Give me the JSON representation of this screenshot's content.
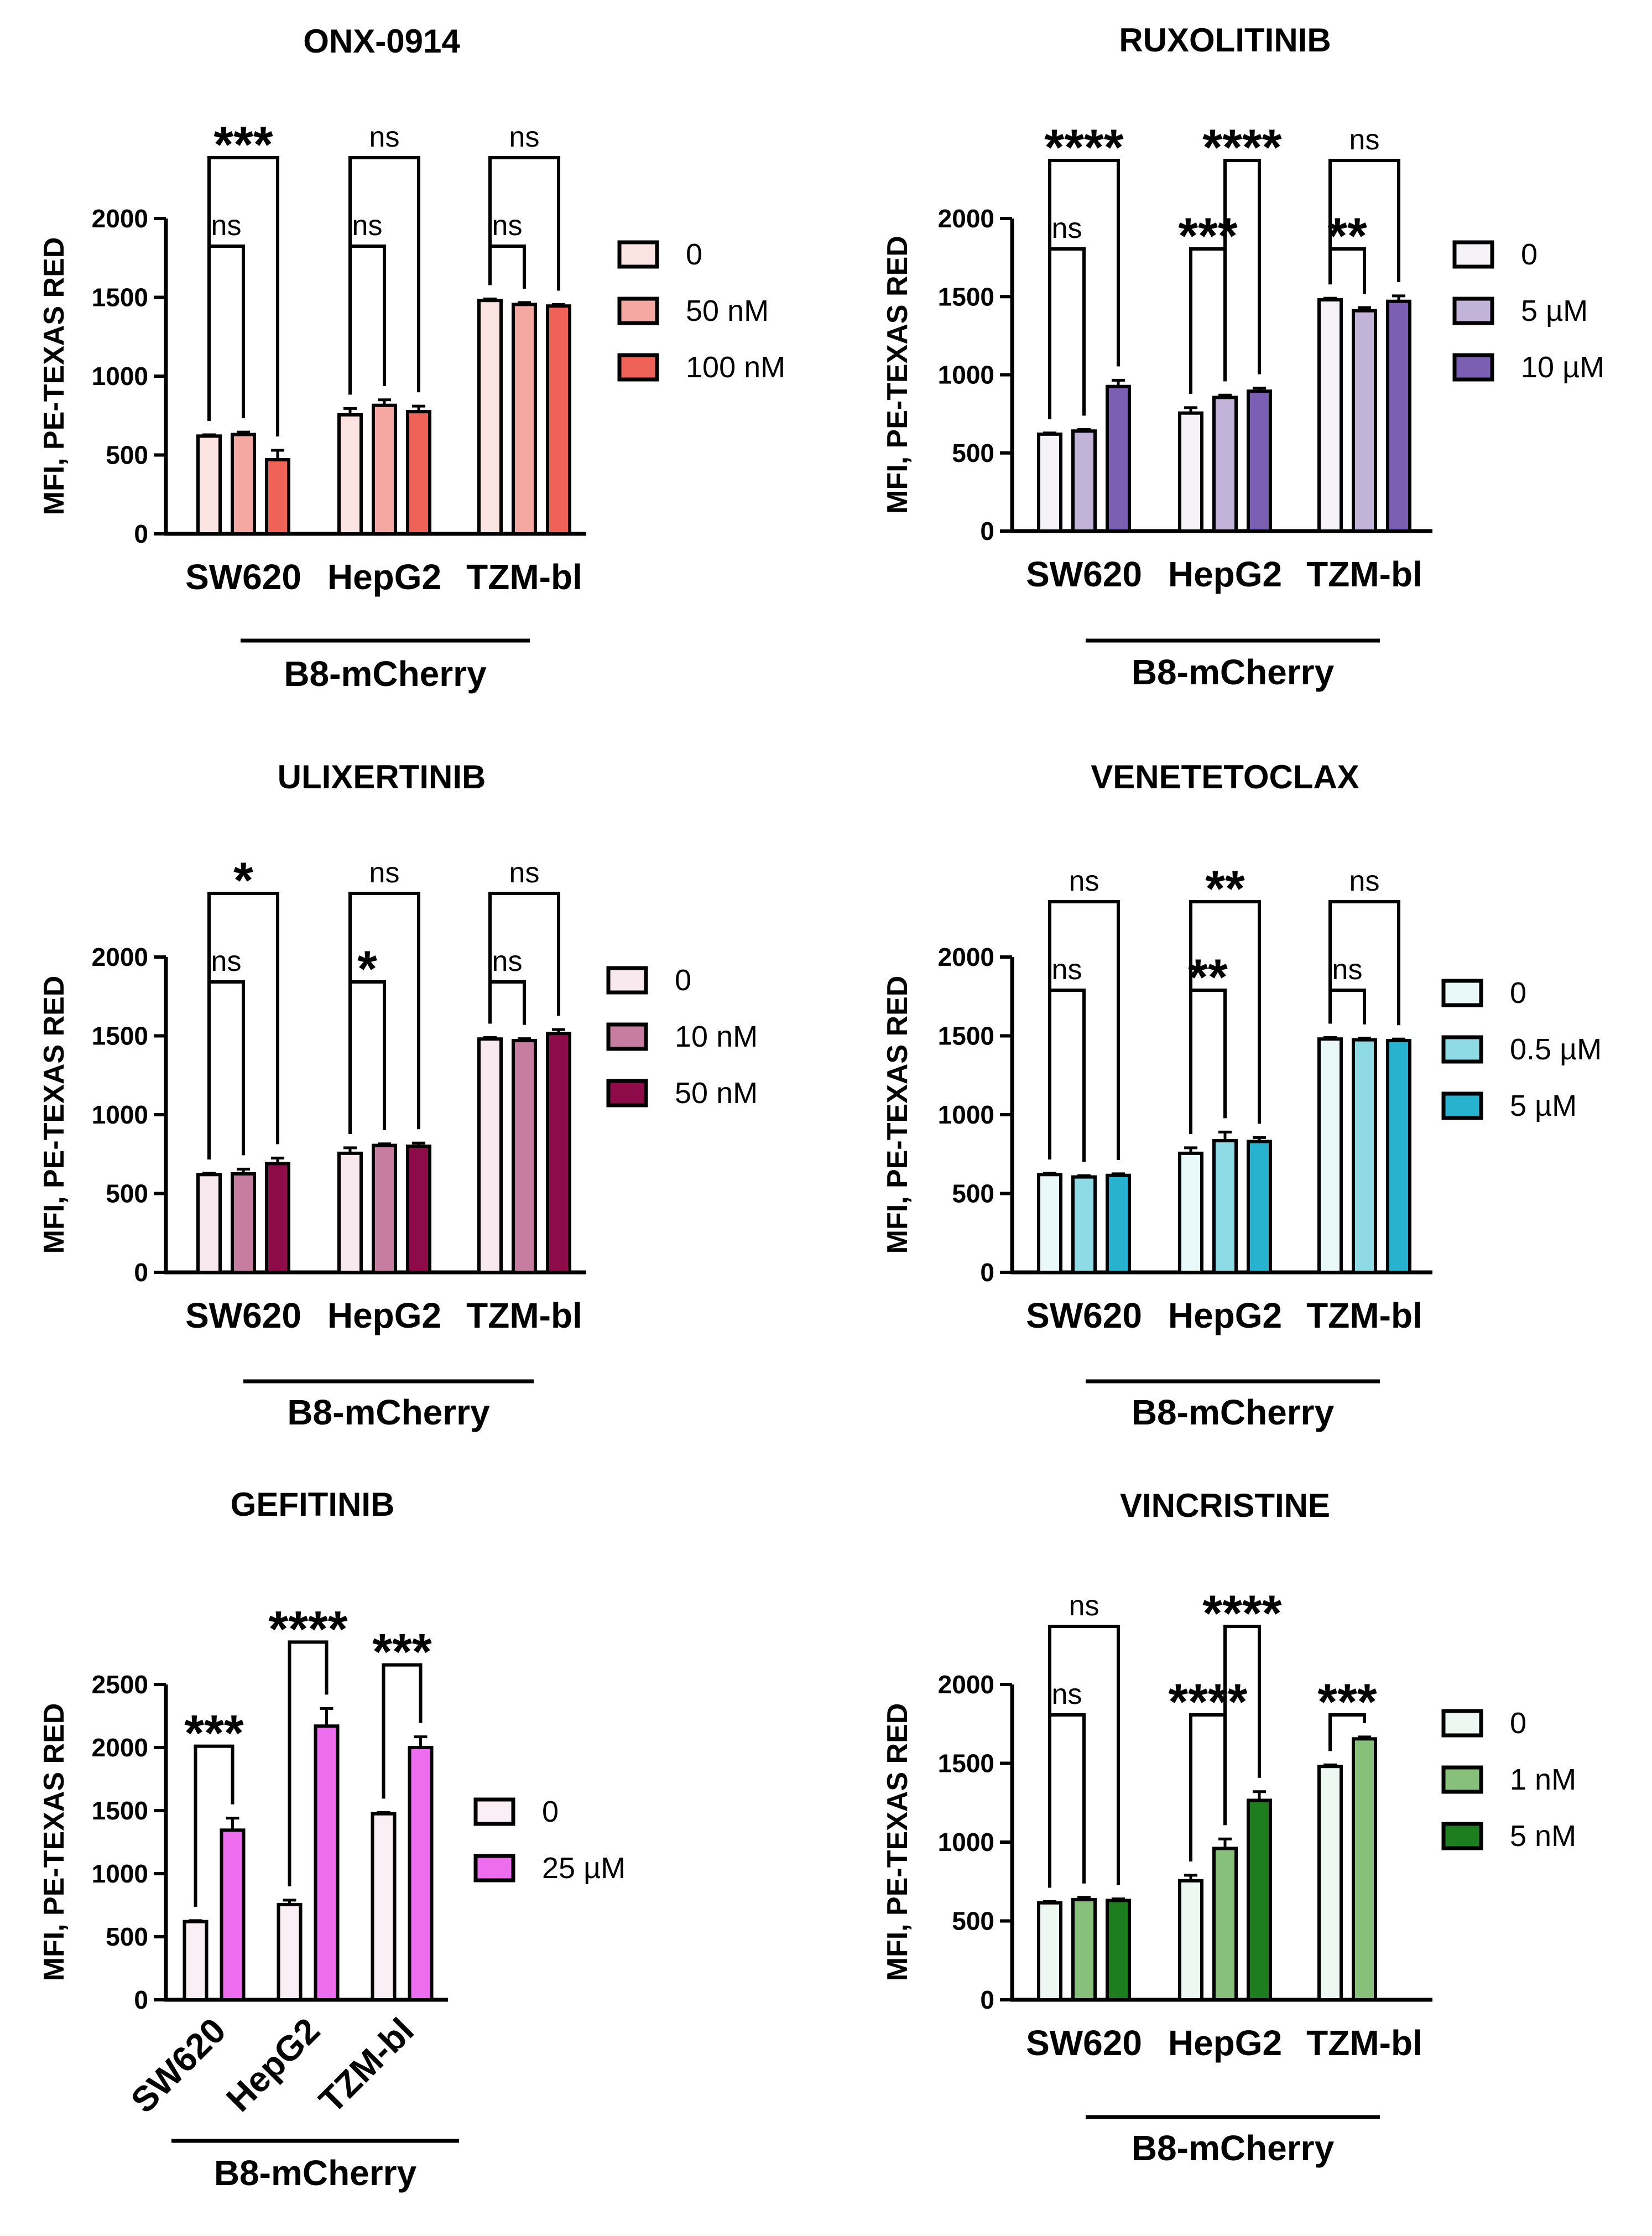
{
  "figure": {
    "y_axis_label": "MFI, PE-TEXAS RED",
    "group_label": "B8-mCherry"
  },
  "chart_data": [
    {
      "type": "bar",
      "title": "ONX-0914",
      "categories": [
        "SW620",
        "HepG2",
        "TZM-bl"
      ],
      "ylim": [
        0,
        2000
      ],
      "yticks": [
        0,
        500,
        1000,
        1500,
        2000
      ],
      "ylabel": "MFI, PE-TEXAS RED",
      "group_label": "B8-mCherry",
      "legend_position": "right",
      "series": [
        {
          "name": "0",
          "color": "#fbe4e1",
          "values": [
            620,
            755,
            1480
          ],
          "errors": [
            8,
            40,
            10
          ]
        },
        {
          "name": "50 nM",
          "color": "#f5a8a2",
          "values": [
            630,
            815,
            1455
          ],
          "errors": [
            15,
            35,
            12
          ]
        },
        {
          "name": "100  nM",
          "color": "#ee6258",
          "values": [
            470,
            775,
            1445
          ],
          "errors": [
            60,
            35,
            10
          ]
        }
      ],
      "comparisons": [
        {
          "category": 0,
          "to": 1,
          "label": "ns",
          "level": 1
        },
        {
          "category": 0,
          "to": 2,
          "label": "***",
          "level": 2
        },
        {
          "category": 1,
          "to": 1,
          "label": "ns",
          "level": 1
        },
        {
          "category": 1,
          "to": 2,
          "label": "ns",
          "level": 2
        },
        {
          "category": 2,
          "to": 1,
          "label": "ns",
          "level": 1
        },
        {
          "category": 2,
          "to": 2,
          "label": "ns",
          "level": 2
        }
      ]
    },
    {
      "type": "bar",
      "title": "RUXOLITINIB",
      "categories": [
        "SW620",
        "HepG2",
        "TZM-bl"
      ],
      "ylim": [
        0,
        2000
      ],
      "yticks": [
        0,
        500,
        1000,
        1500,
        2000
      ],
      "ylabel": "MFI, PE-TEXAS RED",
      "group_label": "B8-mCherry",
      "legend_position": "right",
      "series": [
        {
          "name": "0",
          "color": "#f6f3f8",
          "values": [
            620,
            755,
            1480
          ],
          "errors": [
            8,
            35,
            10
          ]
        },
        {
          "name": "5 µM",
          "color": "#c2b4d9",
          "values": [
            640,
            855,
            1410
          ],
          "errors": [
            10,
            15,
            20
          ]
        },
        {
          "name": "10 µM",
          "color": "#7b5fb2",
          "values": [
            925,
            895,
            1470
          ],
          "errors": [
            40,
            20,
            35
          ]
        }
      ],
      "comparisons": [
        {
          "category": 0,
          "to": 1,
          "label": "ns",
          "level": 1
        },
        {
          "category": 0,
          "to": 2,
          "label": "****",
          "level": 2
        },
        {
          "category": 1,
          "to": 1,
          "label": "***",
          "level": 1
        },
        {
          "category": 1,
          "to": 2,
          "label": "****",
          "level": 2,
          "from": 1
        },
        {
          "category": 2,
          "to": 1,
          "label": "**",
          "level": 1
        },
        {
          "category": 2,
          "to": 2,
          "label": "ns",
          "level": 2
        }
      ]
    },
    {
      "type": "bar",
      "title": "ULIXERTINIB",
      "categories": [
        "SW620",
        "HepG2",
        "TZM-bl"
      ],
      "ylim": [
        0,
        2000
      ],
      "yticks": [
        0,
        500,
        1000,
        1500,
        2000
      ],
      "ylabel": "MFI, PE-TEXAS RED",
      "group_label": "B8-mCherry",
      "legend_position": "right",
      "series": [
        {
          "name": "0",
          "color": "#f8e9ee",
          "values": [
            620,
            755,
            1480
          ],
          "errors": [
            8,
            35,
            10
          ]
        },
        {
          "name": "10 nM",
          "color": "#c67d9f",
          "values": [
            625,
            805,
            1470
          ],
          "errors": [
            30,
            10,
            12
          ]
        },
        {
          "name": "50 nM",
          "color": "#8c0b48",
          "values": [
            690,
            800,
            1515
          ],
          "errors": [
            35,
            20,
            25
          ]
        }
      ],
      "comparisons": [
        {
          "category": 0,
          "to": 1,
          "label": "ns",
          "level": 1
        },
        {
          "category": 0,
          "to": 2,
          "label": "*",
          "level": 2
        },
        {
          "category": 1,
          "to": 1,
          "label": "*",
          "level": 1
        },
        {
          "category": 1,
          "to": 2,
          "label": "ns",
          "level": 2
        },
        {
          "category": 2,
          "to": 1,
          "label": "ns",
          "level": 1
        },
        {
          "category": 2,
          "to": 2,
          "label": "ns",
          "level": 2
        }
      ]
    },
    {
      "type": "bar",
      "title": "VENETETOCLAX",
      "categories": [
        "SW620",
        "HepG2",
        "TZM-bl"
      ],
      "ylim": [
        0,
        2000
      ],
      "yticks": [
        0,
        500,
        1000,
        1500,
        2000
      ],
      "ylabel": "MFI, PE-TEXAS RED",
      "group_label": "B8-mCherry",
      "legend_position": "right",
      "series": [
        {
          "name": "0",
          "color": "#e9f8f8",
          "values": [
            620,
            755,
            1480
          ],
          "errors": [
            8,
            35,
            10
          ]
        },
        {
          "name": "0.5 µM",
          "color": "#8fdbe5",
          "values": [
            605,
            835,
            1475
          ],
          "errors": [
            8,
            55,
            10
          ]
        },
        {
          "name": "5 µM",
          "color": "#27b3cf",
          "values": [
            615,
            830,
            1470
          ],
          "errors": [
            10,
            25,
            10
          ]
        }
      ],
      "comparisons": [
        {
          "category": 0,
          "to": 1,
          "label": "ns",
          "level": 1
        },
        {
          "category": 0,
          "to": 2,
          "label": "ns",
          "level": 2
        },
        {
          "category": 1,
          "to": 1,
          "label": "**",
          "level": 1
        },
        {
          "category": 1,
          "to": 2,
          "label": "**",
          "level": 2
        },
        {
          "category": 2,
          "to": 1,
          "label": "ns",
          "level": 1
        },
        {
          "category": 2,
          "to": 2,
          "label": "ns",
          "level": 2
        }
      ]
    },
    {
      "type": "bar",
      "title": "GEFITINIB",
      "categories": [
        "SW620",
        "HepG2",
        "TZM-bl"
      ],
      "ylim": [
        0,
        2500
      ],
      "yticks": [
        0,
        500,
        1000,
        1500,
        2000,
        2500
      ],
      "ylabel": "MFI, PE-TEXAS RED",
      "group_label": "B8-mCherry",
      "legend_position": "right",
      "rotated_categories": true,
      "series": [
        {
          "name": "0",
          "color": "#fbeff6",
          "values": [
            620,
            755,
            1475
          ],
          "errors": [
            8,
            35,
            10
          ]
        },
        {
          "name": "25 µM",
          "color": "#ec6ded",
          "values": [
            1345,
            2170,
            2000
          ],
          "errors": [
            95,
            140,
            85
          ]
        }
      ],
      "comparisons": [
        {
          "category": 0,
          "to": 1,
          "label": "***",
          "level": 1
        },
        {
          "category": 1,
          "to": 1,
          "label": "****",
          "level": 1
        },
        {
          "category": 2,
          "to": 1,
          "label": "***",
          "level": 1
        }
      ]
    },
    {
      "type": "bar",
      "title": "VINCRISTINE",
      "categories": [
        "SW620",
        "HepG2",
        "TZM-bl"
      ],
      "ylim": [
        0,
        2000
      ],
      "yticks": [
        0,
        500,
        1000,
        1500,
        2000
      ],
      "ylabel": "MFI, PE-TEXAS RED",
      "group_label": "B8-mCherry",
      "legend_position": "right",
      "series": [
        {
          "name": "0",
          "color": "#eef8f3",
          "values": [
            615,
            755,
            1480
          ],
          "errors": [
            8,
            35,
            10
          ]
        },
        {
          "name": "1 nM",
          "color": "#86c07a",
          "values": [
            635,
            960,
            1655
          ],
          "errors": [
            15,
            60,
            12
          ]
        },
        {
          "name": "5 nM",
          "color": "#1e7d1e",
          "values": [
            630,
            1265,
            null
          ],
          "errors": [
            10,
            55,
            0
          ]
        }
      ],
      "comparisons": [
        {
          "category": 0,
          "to": 1,
          "label": "ns",
          "level": 1
        },
        {
          "category": 0,
          "to": 2,
          "label": "ns",
          "level": 2
        },
        {
          "category": 1,
          "to": 1,
          "label": "****",
          "level": 1
        },
        {
          "category": 1,
          "to": 2,
          "label": "****",
          "level": 2,
          "from": 1
        },
        {
          "category": 2,
          "to": 1,
          "label": "***",
          "level": 1
        }
      ]
    }
  ]
}
